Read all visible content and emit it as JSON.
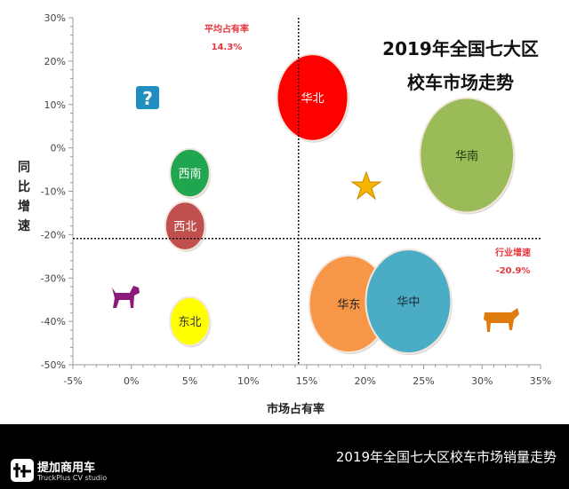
{
  "chart_data": {
    "type": "scatter",
    "subtype": "bubble",
    "title_lines": [
      "2019年全国七大区",
      "校车市场走势"
    ],
    "xlabel": "市场占有率",
    "ylabel": "同比增速",
    "xlim": [
      -5,
      35
    ],
    "ylim": [
      -50,
      30
    ],
    "x_ticks": [
      "-5%",
      "0%",
      "5%",
      "10%",
      "15%",
      "20%",
      "25%",
      "30%",
      "35%"
    ],
    "y_ticks": [
      "30%",
      "20%",
      "10%",
      "0%",
      "-10%",
      "-20%",
      "-30%",
      "-40%",
      "-50%"
    ],
    "grid": false,
    "points": [
      {
        "name": "华北",
        "x": 15.5,
        "y": 11.6,
        "size": 16,
        "color": "#ff0000",
        "label_color": "#ffffff"
      },
      {
        "name": "华南",
        "x": 28.7,
        "y": -1.7,
        "size": 28,
        "color": "#9bbb59",
        "label_color": "#1f3a0f"
      },
      {
        "name": "西南",
        "x": 5.0,
        "y": -5.8,
        "size": 5,
        "color": "#1fa64f",
        "label_color": "#ffffff"
      },
      {
        "name": "西北",
        "x": 4.6,
        "y": -18.0,
        "size": 5,
        "color": "#c0504d",
        "label_color": "#ffffff"
      },
      {
        "name": "东北",
        "x": 5.0,
        "y": -40.0,
        "size": 5,
        "color": "#ffff00",
        "label_color": "#333333"
      },
      {
        "name": "华东",
        "x": 18.6,
        "y": -36.0,
        "size": 20,
        "color": "#f79646",
        "label_color": "#222222"
      },
      {
        "name": "华中",
        "x": 23.7,
        "y": -35.4,
        "size": 23,
        "color": "#4bacc6",
        "label_color": "#1a2a33"
      }
    ],
    "reference_lines": [
      {
        "axis": "x",
        "value": 14.3,
        "label": "平均占有率",
        "value_label": "14.3%"
      },
      {
        "axis": "y",
        "value": -20.9,
        "label": "行业增速",
        "value_label": "-20.9%"
      }
    ],
    "icons": [
      {
        "name": "question-icon",
        "color": "#1f8fbf"
      },
      {
        "name": "star-icon",
        "color": "#f4b400"
      },
      {
        "name": "dog-icon",
        "color": "#8b1a7a"
      },
      {
        "name": "cow-icon",
        "color": "#e07b10"
      }
    ]
  },
  "footer": {
    "title": "2019年全国七大区校车市场销量走势",
    "brand_name": "提加商用车",
    "brand_sub": "TruckPlus CV studio"
  }
}
